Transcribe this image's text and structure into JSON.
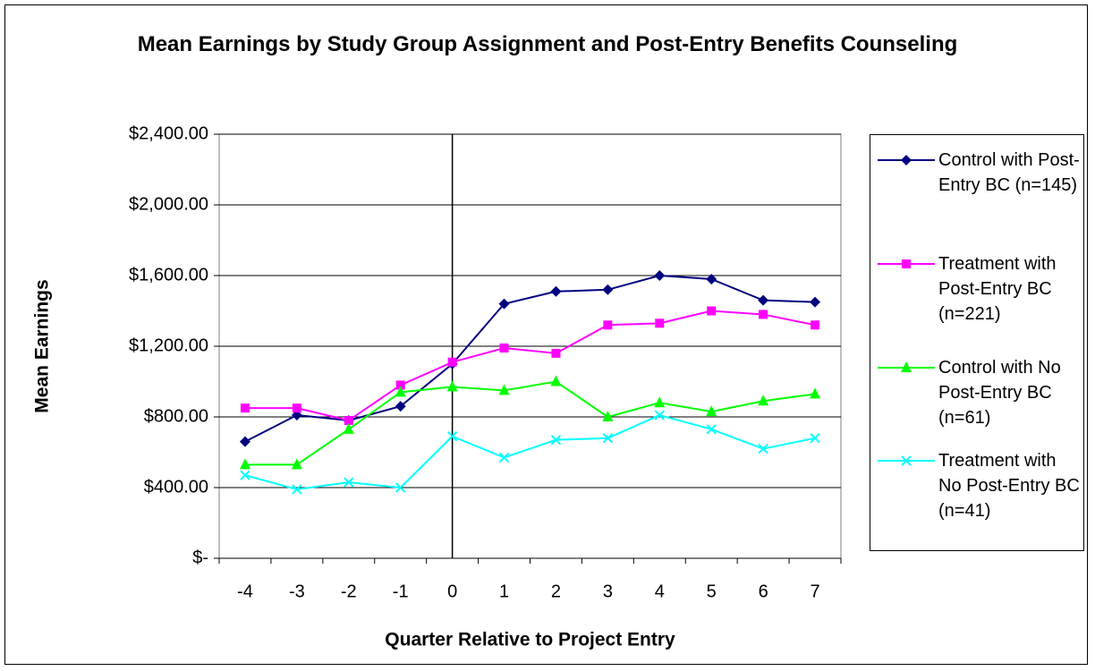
{
  "chart_data": {
    "type": "line",
    "title": "Mean Earnings by Study Group Assignment and Post-Entry Benefits Counseling",
    "x_label": "Quarter Relative to Project Entry",
    "y_label": "Mean Earnings",
    "categories": [
      "-4",
      "-3",
      "-2",
      "-1",
      "0",
      "1",
      "2",
      "3",
      "4",
      "5",
      "6",
      "7"
    ],
    "y_axis_crossing": "0",
    "series": [
      {
        "name": "Control with Post-Entry BC (n=145)",
        "color": "#000080",
        "marker": "diamond",
        "values": [
          660,
          810,
          780,
          860,
          1100,
          1440,
          1510,
          1520,
          1600,
          1580,
          1460,
          1450
        ]
      },
      {
        "name": "Treatment with Post-Entry BC (n=221)",
        "color": "#ff00ff",
        "marker": "square",
        "values": [
          850,
          850,
          780,
          980,
          1110,
          1190,
          1160,
          1320,
          1330,
          1400,
          1380,
          1320
        ]
      },
      {
        "name": "Control with No Post-Entry BC (n=61)",
        "color": "#00ff00",
        "marker": "triangle",
        "values": [
          530,
          530,
          730,
          940,
          970,
          950,
          1000,
          800,
          880,
          830,
          890,
          930
        ]
      },
      {
        "name": "Treatment with No Post-Entry BC (n=41)",
        "color": "#00ffff",
        "marker": "x",
        "values": [
          470,
          390,
          430,
          400,
          690,
          570,
          670,
          680,
          810,
          730,
          620,
          680
        ]
      }
    ],
    "ylim": [
      0,
      2400
    ],
    "yticks": [
      {
        "value": 0,
        "label": "$-"
      },
      {
        "value": 400,
        "label": "$400.00"
      },
      {
        "value": 800,
        "label": "$800.00"
      },
      {
        "value": 1200,
        "label": "$1,200.00"
      },
      {
        "value": 1600,
        "label": "$1,600.00"
      },
      {
        "value": 2000,
        "label": "$2,000.00"
      },
      {
        "value": 2400,
        "label": "$2,400.00"
      }
    ],
    "grid": true,
    "legend": "right"
  }
}
